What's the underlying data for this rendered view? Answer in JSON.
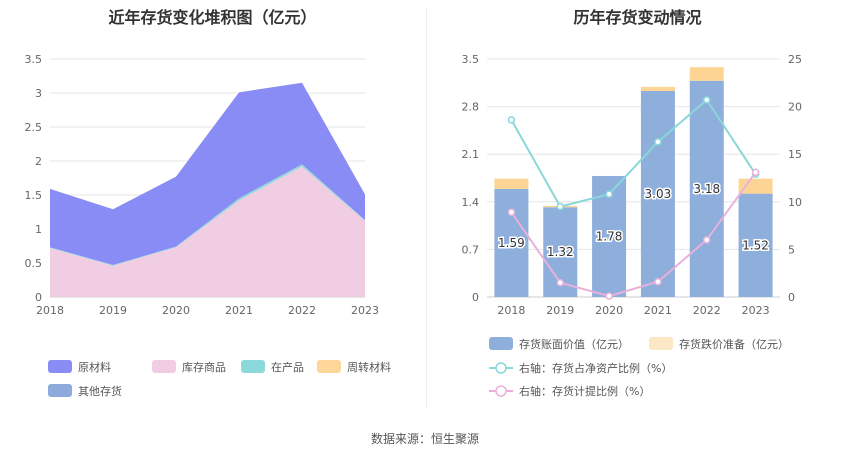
{
  "left_chart": {
    "title": "近年存货变化堆积图（亿元）",
    "chart_data": {
      "type": "area",
      "stacked": true,
      "categories": [
        "2018",
        "2019",
        "2020",
        "2021",
        "2022",
        "2023"
      ],
      "ylim": [
        0,
        3.5
      ],
      "yticks": [
        "0",
        "0.5",
        "1",
        "1.5",
        "2",
        "2.5",
        "3",
        "3.5"
      ],
      "series": [
        {
          "name": "原材料",
          "color": "#8a8cf5",
          "values": [
            0.86,
            0.82,
            1.03,
            1.56,
            1.2,
            0.38
          ]
        },
        {
          "name": "库存商品",
          "color": "#f0cde3",
          "values": [
            0.72,
            0.46,
            0.73,
            1.42,
            1.92,
            1.12
          ]
        },
        {
          "name": "在产品",
          "color": "#8cd9dc",
          "values": [
            0.01,
            0.01,
            0.01,
            0.03,
            0.03,
            0.01
          ]
        },
        {
          "name": "周转材料",
          "color": "#ffd699",
          "values": [
            0,
            0,
            0,
            0,
            0,
            0
          ]
        },
        {
          "name": "其他存货",
          "color": "#8eaadc",
          "values": [
            0,
            0,
            0,
            0,
            0,
            0
          ]
        }
      ],
      "legend_position": "bottom",
      "grid": true
    }
  },
  "right_chart": {
    "title": "历年存货变动情况",
    "chart_data": {
      "type": "bar",
      "categories": [
        "2018",
        "2019",
        "2020",
        "2021",
        "2022",
        "2023"
      ],
      "ylim": [
        0,
        3.5
      ],
      "yticks": [
        "0",
        "0.7",
        "1.4",
        "2.1",
        "2.8",
        "3.5"
      ],
      "y2lim": [
        0,
        25
      ],
      "y2ticks": [
        "0",
        "5",
        "10",
        "15",
        "20",
        "25"
      ],
      "series": [
        {
          "name": "存货账面价值（亿元）",
          "kind": "bar",
          "color": "#8eaedb",
          "values": [
            1.59,
            1.32,
            1.78,
            3.03,
            3.18,
            1.52
          ],
          "labels": [
            "1.59",
            "1.32",
            "1.78",
            "3.03",
            "3.18",
            "1.52"
          ]
        },
        {
          "name": "存货跌价准备（亿元）",
          "kind": "bar-stack",
          "color": "#fcd595",
          "values": [
            0.15,
            0.02,
            0,
            0.06,
            0.2,
            0.22
          ]
        },
        {
          "name": "右轴：存货占净资产比例（%）",
          "kind": "line",
          "axis": "right",
          "color": "#8ad7da",
          "values": [
            18.6,
            9.5,
            10.8,
            16.3,
            20.7,
            12.9
          ]
        },
        {
          "name": "右轴：存货计提比例（%）",
          "kind": "line",
          "axis": "right",
          "color": "#e8b1da",
          "values": [
            8.9,
            1.5,
            0.1,
            1.6,
            6.0,
            13.1
          ]
        }
      ],
      "legend_position": "bottom",
      "grid": true
    }
  },
  "source": "数据来源：恒生聚源"
}
